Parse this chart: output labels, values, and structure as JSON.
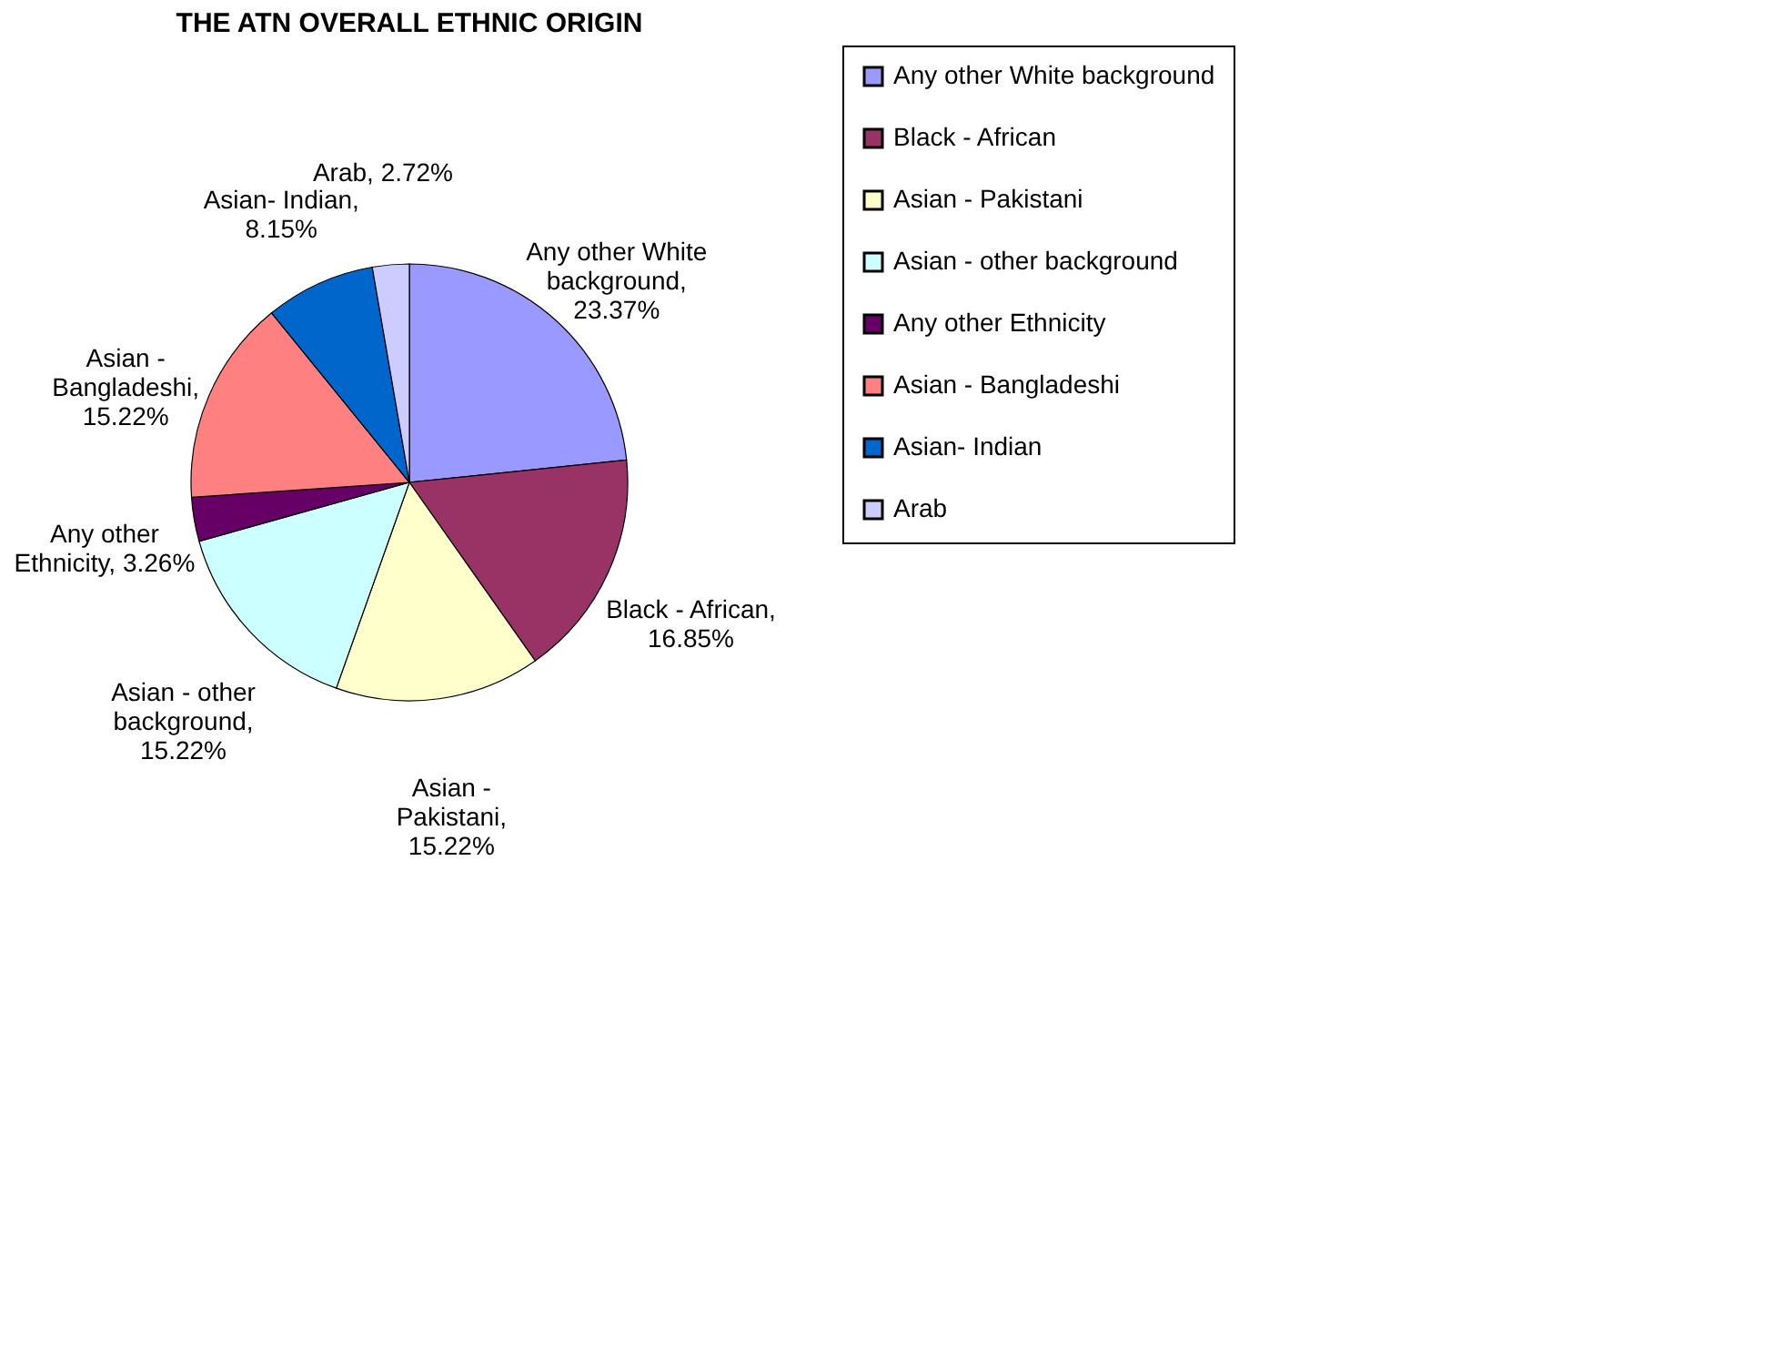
{
  "chart_data": {
    "type": "pie",
    "title": "THE ATN OVERALL ETHNIC ORIGIN",
    "categories": [
      "Any other White background",
      "Black - African",
      "Asian - Pakistani",
      "Asian - other background",
      "Any other Ethnicity",
      "Asian - Bangladeshi",
      "Asian- Indian",
      "Arab"
    ],
    "values": [
      23.37,
      16.85,
      15.22,
      15.22,
      3.26,
      15.22,
      8.15,
      2.72
    ],
    "value_labels": [
      "Any other White background, 23.37%",
      "Black - African, 16.85%",
      "Asian - Pakistani, 15.22%",
      "Asian - other background, 15.22%",
      "Any other Ethnicity, 3.26%",
      "Asian - Bangladeshi, 15.22%",
      "Asian- Indian, 8.15%",
      "Arab, 2.72%"
    ],
    "colors": [
      "#9999ff",
      "#993366",
      "#ffffcc",
      "#ccffff",
      "#660066",
      "#ff8080",
      "#0066cc",
      "#ccccff"
    ],
    "legend": "right"
  }
}
